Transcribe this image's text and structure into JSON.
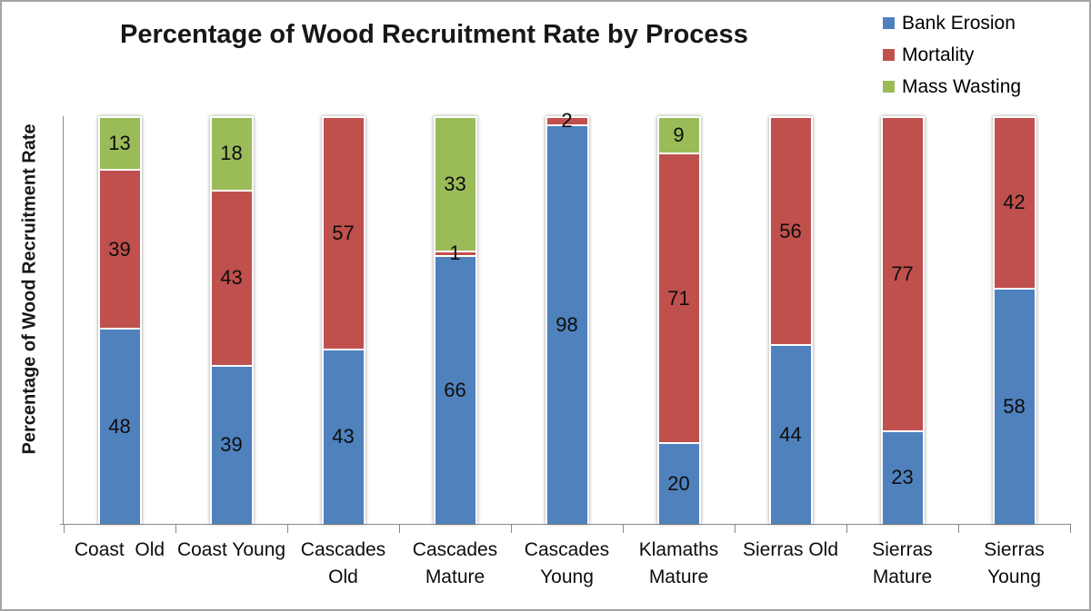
{
  "title": "Percentage of Wood Recruitment Rate by Process",
  "y_axis_label": "Percentage of Wood Recruitment Rate",
  "legend": {
    "position": "top-right",
    "items": [
      {
        "label": "Bank Erosion",
        "color": "#4F81BD"
      },
      {
        "label": "Mortality",
        "color": "#C0504D"
      },
      {
        "label": "Mass Wasting",
        "color": "#9BBB59"
      }
    ]
  },
  "chart_data": {
    "type": "bar",
    "stacked": true,
    "units": "percent",
    "title": "Percentage of Wood Recruitment Rate by Process",
    "xlabel": "",
    "ylabel": "Percentage of Wood Recruitment Rate",
    "ylim": [
      0,
      100
    ],
    "grid": false,
    "y_tick_labels_visible": false,
    "legend_position": "top-right",
    "value_label_position": "center",
    "categories": [
      "Coast  Old",
      "Coast Young",
      "Cascades Old",
      "Cascades\nMature",
      "Cascades\nYoung",
      "Klamaths\nMature",
      "Sierras Old",
      "Sierras\nMature",
      "Sierras Young"
    ],
    "series": [
      {
        "name": "Bank Erosion",
        "color": "#4F81BD",
        "values": [
          48,
          39,
          43,
          66,
          98,
          20,
          44,
          23,
          58
        ]
      },
      {
        "name": "Mortality",
        "color": "#C0504D",
        "values": [
          39,
          43,
          57,
          1,
          2,
          71,
          56,
          77,
          42
        ]
      },
      {
        "name": "Mass Wasting",
        "color": "#9BBB59",
        "values": [
          13,
          18,
          0,
          33,
          0,
          9,
          0,
          0,
          0
        ]
      }
    ]
  },
  "colors": {
    "axis": "#898989",
    "text": "#000000",
    "frame_border": "#A3A3A3",
    "background": "#FFFFFF"
  }
}
